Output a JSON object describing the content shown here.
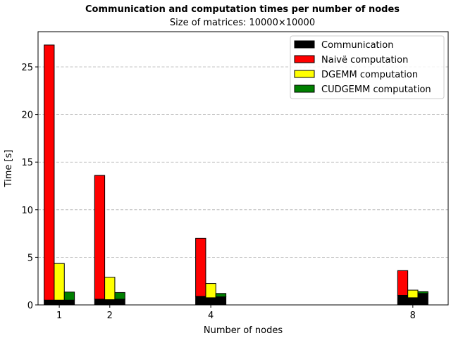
{
  "chart_data": {
    "type": "bar",
    "title": "Communication and computation times per number of nodes",
    "subtitle": "Size of matrices: 10000×10000",
    "xlabel": "Number of nodes",
    "ylabel": "Time [s]",
    "x": [
      1,
      2,
      4,
      8
    ],
    "x_ticks": [
      "1",
      "2",
      "4",
      "8"
    ],
    "xlim": [
      0.58,
      8.7
    ],
    "ylim": [
      0,
      28.7
    ],
    "y_ticks": [
      "0",
      "5",
      "10",
      "15",
      "20",
      "25"
    ],
    "y_tick_values": [
      0,
      5,
      10,
      15,
      20,
      25
    ],
    "grid": "horizontal dashed",
    "legend_position": "top-right",
    "stacked_on_communication": true,
    "communication": {
      "name": "Communication",
      "color": "#000000",
      "naive": [
        0.5,
        0.6,
        0.9,
        1.0
      ],
      "dgemm": [
        0.5,
        0.55,
        0.75,
        0.75
      ],
      "cudgemm": [
        0.5,
        0.6,
        0.85,
        1.2
      ]
    },
    "series": [
      {
        "name": "Naivë computation",
        "color": "#ff0000",
        "values": [
          26.8,
          13.0,
          6.1,
          2.6
        ]
      },
      {
        "name": "DGEMM computation",
        "color": "#ffff00",
        "values": [
          3.85,
          2.35,
          1.5,
          0.8
        ]
      },
      {
        "name": "CUDGEMM computation",
        "color": "#008000",
        "values": [
          0.85,
          0.7,
          0.35,
          0.2
        ]
      }
    ],
    "legend": [
      "Communication",
      "Naivë computation",
      "DGEMM computation",
      "CUDGEMM computation"
    ]
  }
}
